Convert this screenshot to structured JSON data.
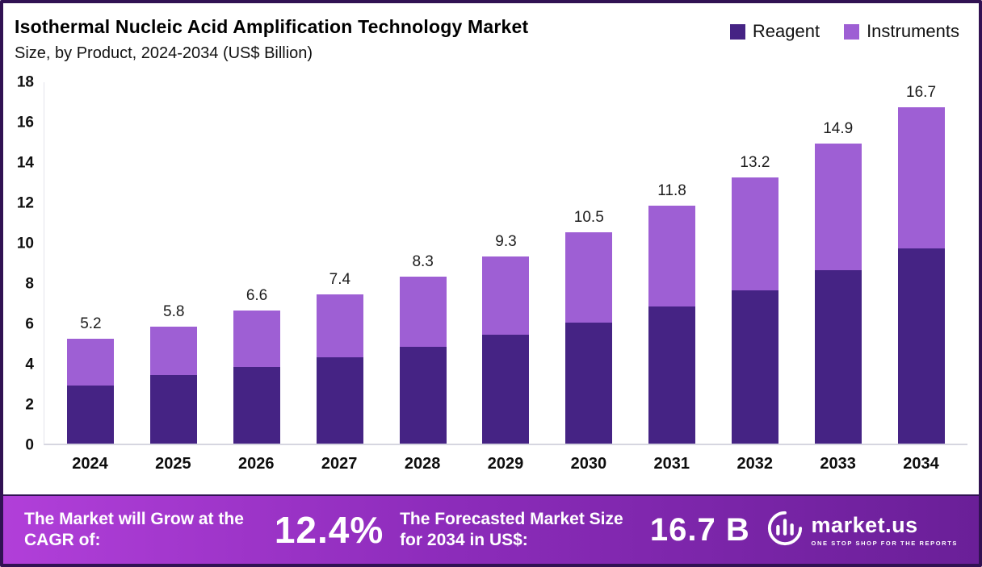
{
  "header": {
    "title": "Isothermal Nucleic Acid Amplification Technology Market",
    "subtitle": "Size, by Product, 2024-2034 (US$ Billion)"
  },
  "legend": [
    {
      "label": "Reagent",
      "color": "#452384"
    },
    {
      "label": "Instruments",
      "color": "#9e5fd4"
    }
  ],
  "chart_data": {
    "type": "bar",
    "stacked": true,
    "title": "Isothermal Nucleic Acid Amplification Technology Market Size, by Product, 2024-2034 (US$ Billion)",
    "categories": [
      "2024",
      "2025",
      "2026",
      "2027",
      "2028",
      "2029",
      "2030",
      "2031",
      "2032",
      "2033",
      "2034"
    ],
    "series": [
      {
        "name": "Reagent",
        "color": "#452384",
        "values": [
          2.9,
          3.4,
          3.8,
          4.3,
          4.8,
          5.4,
          6.0,
          6.8,
          7.6,
          8.6,
          9.7
        ]
      },
      {
        "name": "Instruments",
        "color": "#9e5fd4",
        "values": [
          2.3,
          2.4,
          2.8,
          3.1,
          3.5,
          3.9,
          4.5,
          5.0,
          5.6,
          6.3,
          7.0
        ]
      }
    ],
    "totals": [
      5.2,
      5.8,
      6.6,
      7.4,
      8.3,
      9.3,
      10.5,
      11.8,
      13.2,
      14.9,
      16.7
    ],
    "total_labels": [
      "5.2",
      "5.8",
      "6.6",
      "7.4",
      "8.3",
      "9.3",
      "10.5",
      "11.8",
      "13.2",
      "14.9",
      "16.7"
    ],
    "xlabel": "",
    "ylabel": "",
    "ylim": [
      0,
      18
    ],
    "yticks": [
      0,
      2,
      4,
      6,
      8,
      10,
      12,
      14,
      16,
      18
    ],
    "grid": false,
    "legend_position": "top-right"
  },
  "banner": {
    "cagr_label": "The Market will Grow at the CAGR of:",
    "cagr_value": "12.4%",
    "forecast_label": "The Forecasted Market Size for 2034 in US$:",
    "forecast_value": "16.7 B",
    "brand": "market.us",
    "brand_tagline": "ONE STOP SHOP FOR THE REPORTS"
  },
  "colors": {
    "frame_border": "#311253",
    "banner_gradient_start": "#b13fd9",
    "banner_gradient_mid": "#8d2cbb",
    "banner_gradient_end": "#6a1f98",
    "baseline": "#d6d6e0"
  }
}
